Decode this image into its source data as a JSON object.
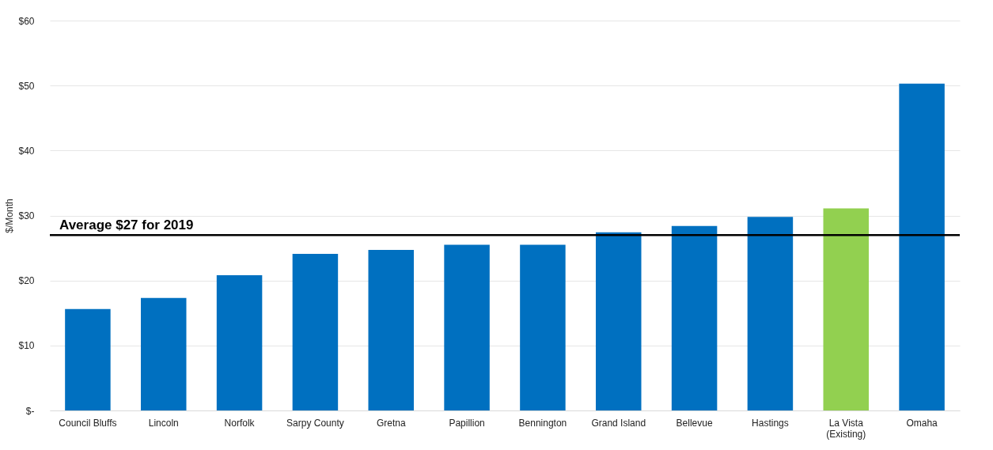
{
  "chart_data": {
    "type": "bar",
    "ylabel": "$/Month",
    "categories": [
      "Council Bluffs",
      "Lincoln",
      "Norfolk",
      "Sarpy County",
      "Gretna",
      "Papillion",
      "Bennington",
      "Grand Island",
      "Bellevue",
      "Hastings",
      "La Vista\n(Existing)",
      "Omaha"
    ],
    "values": [
      15.6,
      17.3,
      20.8,
      24.1,
      24.7,
      25.5,
      25.5,
      27.4,
      28.4,
      29.8,
      31.1,
      50.3
    ],
    "colors": [
      "#0070c0",
      "#0070c0",
      "#0070c0",
      "#0070c0",
      "#0070c0",
      "#0070c0",
      "#0070c0",
      "#0070c0",
      "#0070c0",
      "#0070c0",
      "#92d050",
      "#0070c0"
    ],
    "ylim": [
      0,
      60
    ],
    "yticks": [
      {
        "value": 0,
        "label": "$-"
      },
      {
        "value": 10,
        "label": "$10"
      },
      {
        "value": 20,
        "label": "$20"
      },
      {
        "value": 30,
        "label": "$30"
      },
      {
        "value": 40,
        "label": "$40"
      },
      {
        "value": 50,
        "label": "$50"
      },
      {
        "value": 60,
        "label": "$60"
      }
    ],
    "grid": "y",
    "ref_lines": [
      {
        "axis": "y",
        "value": 27,
        "label": "Average $27 for 2019",
        "color": "#000000"
      }
    ]
  }
}
